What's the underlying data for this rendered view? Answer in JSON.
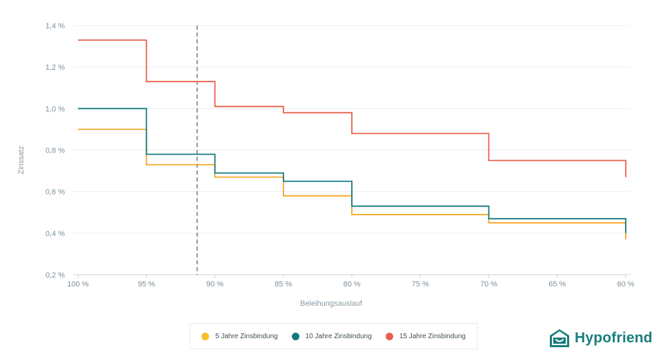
{
  "chart_data": {
    "type": "line",
    "step": true,
    "xlabel": "Beleihungsauslauf",
    "ylabel": "Zinssatz",
    "x_ticks": [
      "100 %",
      "95 %",
      "90 %",
      "85 %",
      "80 %",
      "75 %",
      "70 %",
      "65 %",
      "60 %"
    ],
    "x_tick_values": [
      100,
      95,
      90,
      85,
      80,
      75,
      70,
      65,
      60
    ],
    "y_ticks": [
      "0,2 %",
      "0,4 %",
      "0,6 %",
      "0,8 %",
      "1,0 %",
      "1,2 %",
      "1,4 %"
    ],
    "y_tick_values": [
      0.2,
      0.4,
      0.6,
      0.8,
      1.0,
      1.2,
      1.4
    ],
    "xlim": [
      100,
      60
    ],
    "ylim": [
      0.2,
      1.4
    ],
    "grid": "horizontal",
    "marker_line_x": 91.3,
    "series": [
      {
        "name": "5 Jahre Zinsbindung",
        "color": "#f5a623",
        "x": [
          100,
          95,
          95,
          90,
          90,
          85,
          85,
          80,
          80,
          70,
          70,
          60,
          60
        ],
        "y": [
          0.9,
          0.9,
          0.73,
          0.73,
          0.67,
          0.67,
          0.58,
          0.58,
          0.49,
          0.49,
          0.45,
          0.45,
          0.37
        ]
      },
      {
        "name": "10 Jahre Zinsbindung",
        "color": "#137a7f",
        "x": [
          100,
          95,
          95,
          90,
          90,
          85,
          85,
          80,
          80,
          70,
          70,
          60,
          60
        ],
        "y": [
          1.0,
          1.0,
          0.78,
          0.78,
          0.69,
          0.69,
          0.65,
          0.65,
          0.53,
          0.53,
          0.47,
          0.47,
          0.4
        ]
      },
      {
        "name": "15 Jahre Zinsbindung",
        "color": "#e8604c",
        "x": [
          100,
          95,
          95,
          90,
          90,
          85,
          85,
          80,
          80,
          70,
          70,
          60,
          60
        ],
        "y": [
          1.33,
          1.33,
          1.13,
          1.13,
          1.01,
          1.01,
          0.98,
          0.98,
          0.88,
          0.88,
          0.75,
          0.75,
          0.67
        ]
      }
    ],
    "legend_position": "bottom-center"
  },
  "legend": {
    "items": [
      {
        "label": "5 Jahre Zinsbindung",
        "color": "#f5c02c"
      },
      {
        "label": "10 Jahre Zinsbindung",
        "color": "#137a7f"
      },
      {
        "label": "15 Jahre Zinsbindung",
        "color": "#e8604c"
      }
    ]
  },
  "brand": {
    "name": "Hypofriend",
    "color": "#1a7d7d",
    "icon": "house-smile-icon"
  }
}
